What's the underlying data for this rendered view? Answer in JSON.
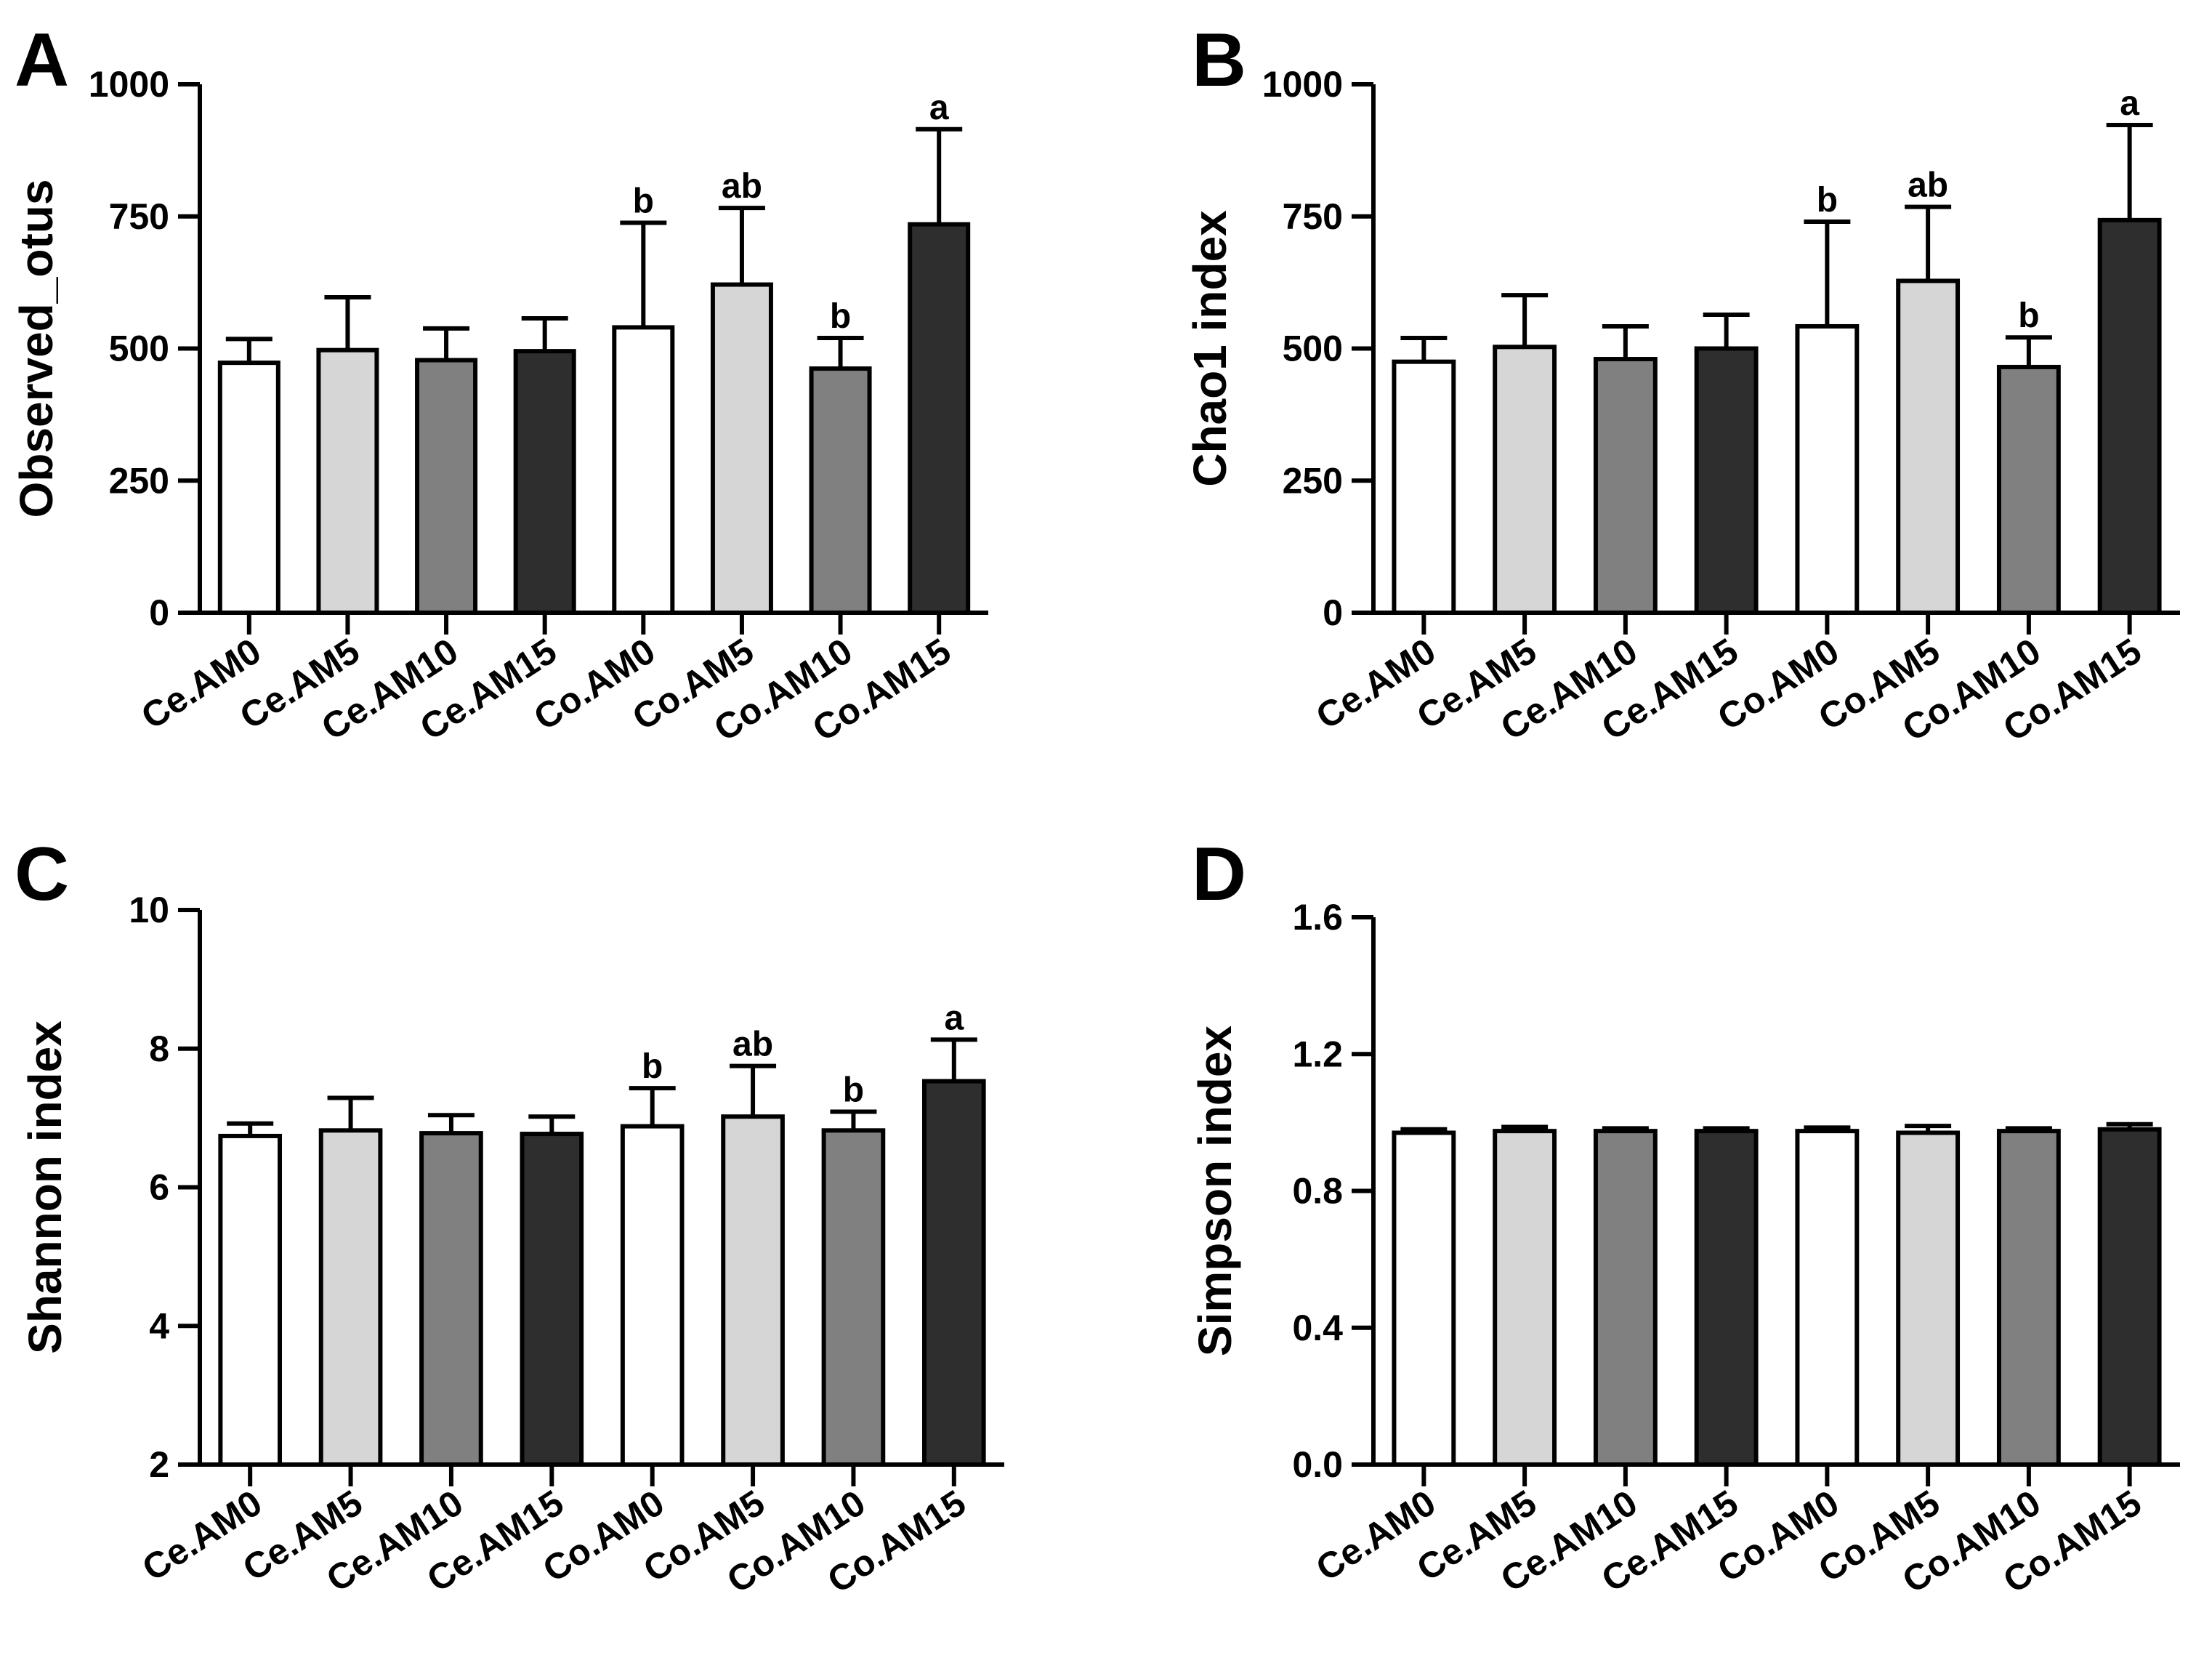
{
  "figure_colors": [
    "#ffffff",
    "#d6d6d6",
    "#808080",
    "#2e2e2e",
    "#ffffff",
    "#d6d6d6",
    "#808080",
    "#2e2e2e"
  ],
  "chart_data": [
    {
      "panel": "A",
      "type": "bar",
      "title": "",
      "xlabel": "",
      "ylabel": "Observed_otus",
      "ylim": [
        0,
        1000
      ],
      "yticks": [
        "0",
        "250",
        "500",
        "750",
        "1000"
      ],
      "categories": [
        "Ce.AM0",
        "Ce.AM5",
        "Ce.AM10",
        "Ce.AM15",
        "Co.AM0",
        "Co.AM5",
        "Co.AM10",
        "Co.AM15"
      ],
      "values": [
        473,
        497,
        478,
        495,
        540,
        621,
        462,
        735
      ],
      "errors": [
        45,
        100,
        60,
        62,
        198,
        145,
        58,
        180
      ],
      "annotations": [
        "",
        "",
        "",
        "",
        "b",
        "ab",
        "b",
        "a"
      ]
    },
    {
      "panel": "B",
      "type": "bar",
      "title": "",
      "xlabel": "",
      "ylabel": "Chao1 index",
      "ylim": [
        0,
        1000
      ],
      "yticks": [
        "0",
        "250",
        "500",
        "750",
        "1000"
      ],
      "categories": [
        "Ce.AM0",
        "Ce.AM5",
        "Ce.AM10",
        "Ce.AM15",
        "Co.AM0",
        "Co.AM5",
        "Co.AM10",
        "Co.AM15"
      ],
      "values": [
        475,
        503,
        480,
        500,
        542,
        628,
        465,
        743
      ],
      "errors": [
        45,
        98,
        62,
        64,
        198,
        140,
        56,
        180
      ],
      "annotations": [
        "",
        "",
        "",
        "",
        "b",
        "ab",
        "b",
        "a"
      ]
    },
    {
      "panel": "C",
      "type": "bar",
      "title": "",
      "xlabel": "",
      "ylabel": "Shannon index",
      "ylim": [
        2,
        10
      ],
      "yticks": [
        "2",
        "4",
        "6",
        "8",
        "10"
      ],
      "categories": [
        "Ce.AM0",
        "Ce.AM5",
        "Ce.AM10",
        "Ce.AM15",
        "Co.AM0",
        "Co.AM5",
        "Co.AM10",
        "Co.AM15"
      ],
      "values": [
        6.74,
        6.82,
        6.78,
        6.77,
        6.88,
        7.02,
        6.82,
        7.53
      ],
      "errors": [
        0.18,
        0.47,
        0.26,
        0.25,
        0.55,
        0.73,
        0.27,
        0.6
      ],
      "annotations": [
        "",
        "",
        "",
        "",
        "b",
        "ab",
        "b",
        "a"
      ]
    },
    {
      "panel": "D",
      "type": "bar",
      "title": "",
      "xlabel": "",
      "ylabel": "Simpson index",
      "ylim": [
        0.0,
        1.6
      ],
      "yticks": [
        "0.0",
        "0.4",
        "0.8",
        "1.2",
        "1.6"
      ],
      "categories": [
        "Ce.AM0",
        "Ce.AM5",
        "Ce.AM10",
        "Ce.AM15",
        "Co.AM0",
        "Co.AM5",
        "Co.AM10",
        "Co.AM15"
      ],
      "values": [
        0.97,
        0.975,
        0.975,
        0.975,
        0.975,
        0.97,
        0.975,
        0.98
      ],
      "errors": [
        0.01,
        0.012,
        0.008,
        0.008,
        0.01,
        0.02,
        0.008,
        0.015
      ],
      "annotations": [
        "",
        "",
        "",
        "",
        "",
        "",
        "",
        ""
      ]
    }
  ]
}
